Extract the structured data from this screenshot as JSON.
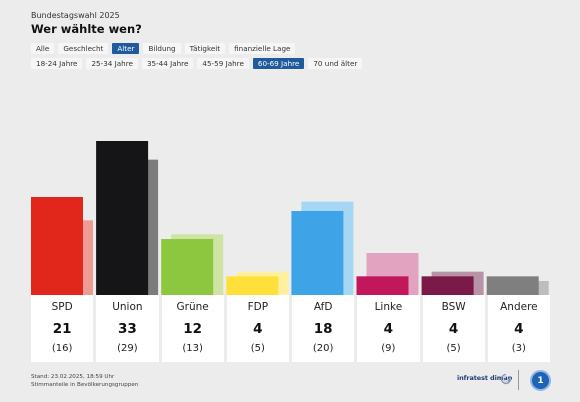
{
  "header": {
    "kicker": "Bundestagswahl 2025",
    "title": "Wer wählte wen?"
  },
  "filters": {
    "groups": [
      "Alle",
      "Geschlecht",
      "Alter",
      "Bildung",
      "Tätigkeit",
      "finanzielle Lage"
    ],
    "active_group": "Alter",
    "ages": [
      "18-24 Jahre",
      "25-34 Jahre",
      "35-44 Jahre",
      "45-59 Jahre",
      "60-69 Jahre",
      "70 und älter"
    ],
    "active_age": "60-69 Jahre"
  },
  "chart_data": {
    "type": "bar",
    "categories": [
      "SPD",
      "Union",
      "Grüne",
      "FDP",
      "AfD",
      "Linke",
      "BSW",
      "Andere"
    ],
    "series": [
      {
        "values": [
          21,
          33,
          12,
          4,
          18,
          4,
          4,
          4
        ]
      },
      {
        "values": [
          16,
          29,
          13,
          5,
          20,
          9,
          5,
          3
        ]
      }
    ],
    "labels": [
      "21",
      "33",
      "12",
      "4",
      "18",
      "4",
      "4",
      "4"
    ],
    "prev_labels": [
      "(16)",
      "(29)",
      "(13)",
      "(5)",
      "(20)",
      "(9)",
      "(5)",
      "(3)"
    ],
    "colors": [
      "#e1261c",
      "#151518",
      "#8dc63f",
      "#ffdf3a",
      "#3fa3e8",
      "#c2185b",
      "#7b1a48",
      "#7f7f7f"
    ],
    "prev_colors": [
      "#ee9a95",
      "#7b7b7b",
      "#cfe3a6",
      "#fff0a0",
      "#a5d7f5",
      "#e2a3c0",
      "#b892a6",
      "#bdbdbd"
    ],
    "ylim": [
      0,
      35
    ]
  },
  "footer": {
    "stand": "Stand: 23.02.2025, 18:59 Uhr",
    "note": "Stimmanteile in Bevölkerungsgruppen",
    "brand": "infratest dimap",
    "logo_text": "1"
  }
}
